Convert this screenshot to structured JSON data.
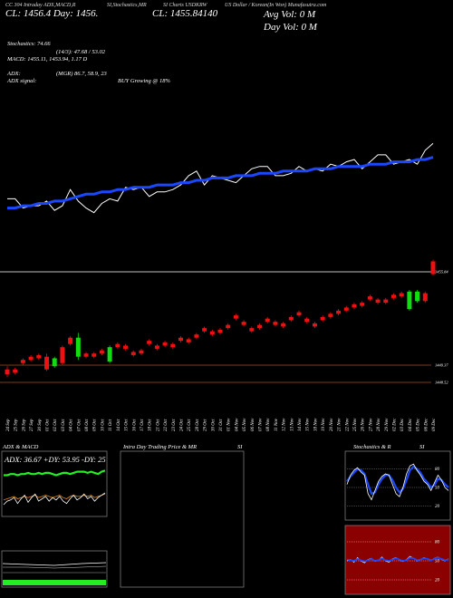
{
  "header": {
    "top_labels": [
      "CC 304 Intraday ADX,MACD,R",
      "SI,Stochastics,MR",
      "SI Charts USDKRW",
      "US Dollar / Korean(In Won) Munafasutra.com"
    ],
    "line2_left": "CL: 1456.4   Day: 1456.",
    "close_label": "CL: 1455.84140",
    "avg_vol": "Avg Vol: 0  M",
    "day_vol": "Day Vol: 0   M"
  },
  "info": {
    "stochastics": "Stochastics: 74.66",
    "stoch_values": "(14/3): 47.68 / 53.02",
    "macd": "MACD: 1455.11,  1453.94,  1.17 D",
    "adx": "ADX:",
    "adx_values": "(MGR) 86.7,  58.9,  23",
    "adx_signal": "ADX  signal:",
    "signal_value": "BUY Growing @ 18%"
  },
  "panels": {
    "adx_title": "ADX  & MACD",
    "adx_values": "ADX: 36.67 +DY: 53.95 -DY: 25",
    "intra_title": "Intra  Day Trading Price  & MR",
    "intra_si": "SI",
    "stoch_title": "Stochastics & R",
    "stoch_si": "SI",
    "stoch_levels": [
      "80",
      "50",
      "20"
    ],
    "rsi_levels": [
      "80",
      "50",
      "20"
    ]
  },
  "price_labels": [
    "1455.84",
    "1449.37",
    "1448.52"
  ],
  "chart_data": {
    "type": "candlestick",
    "title": "",
    "dates": [
      "24 Sep",
      "25 Sep",
      "26 Sep",
      "27 Sep",
      "30 Sep",
      "01 Oct",
      "02 Oct",
      "03 Oct",
      "04 Oct",
      "07 Oct",
      "08 Oct",
      "09 Oct",
      "10 Oct",
      "11 Oct",
      "14 Oct",
      "15 Oct",
      "16 Oct",
      "17 Oct",
      "18 Oct",
      "21 Oct",
      "22 Oct",
      "23 Oct",
      "24 Oct",
      "25 Oct",
      "28 Oct",
      "29 Oct",
      "30 Oct",
      "31 Oct",
      "01 Nov",
      "04 Nov",
      "05 Nov",
      "06 Nov",
      "07 Nov",
      "08 Nov",
      "11 Nov",
      "12 Nov",
      "13 Nov",
      "14 Nov",
      "15 Nov",
      "18 Nov",
      "19 Nov",
      "20 Nov",
      "21 Nov",
      "22 Nov",
      "25 Nov",
      "26 Nov",
      "27 Nov",
      "28 Nov",
      "29 Nov",
      "02 Dec",
      "03 Dec",
      "04 Dec",
      "05 Dec",
      "06 Dec",
      "09 Dec"
    ],
    "candles": [
      {
        "o": 1449.0,
        "c": 1448.7,
        "h": 1449.2,
        "l": 1448.5
      },
      {
        "o": 1449.0,
        "c": 1448.8,
        "h": 1449.1,
        "l": 1448.7
      },
      {
        "o": 1449.6,
        "c": 1449.4,
        "h": 1449.7,
        "l": 1449.3
      },
      {
        "o": 1449.8,
        "c": 1449.6,
        "h": 1449.9,
        "l": 1449.5
      },
      {
        "o": 1449.9,
        "c": 1449.7,
        "h": 1450.0,
        "l": 1449.6
      },
      {
        "o": 1449.8,
        "c": 1449.0,
        "h": 1450.0,
        "l": 1448.9
      },
      {
        "o": 1449.2,
        "c": 1449.7,
        "h": 1449.8,
        "l": 1449.1
      },
      {
        "o": 1450.4,
        "c": 1449.4,
        "h": 1450.5,
        "l": 1449.3
      },
      {
        "o": 1451.0,
        "c": 1450.6,
        "h": 1451.1,
        "l": 1450.5
      },
      {
        "o": 1449.8,
        "c": 1451.0,
        "h": 1451.3,
        "l": 1449.6
      },
      {
        "o": 1450.0,
        "c": 1449.8,
        "h": 1450.1,
        "l": 1449.7
      },
      {
        "o": 1450.0,
        "c": 1449.8,
        "h": 1450.1,
        "l": 1449.7
      },
      {
        "o": 1450.2,
        "c": 1450.0,
        "h": 1450.3,
        "l": 1449.9
      },
      {
        "o": 1449.5,
        "c": 1450.4,
        "h": 1450.5,
        "l": 1449.4
      },
      {
        "o": 1450.6,
        "c": 1450.4,
        "h": 1450.7,
        "l": 1450.3
      },
      {
        "o": 1450.5,
        "c": 1450.3,
        "h": 1450.6,
        "l": 1450.2
      },
      {
        "o": 1450.1,
        "c": 1449.9,
        "h": 1450.2,
        "l": 1449.8
      },
      {
        "o": 1450.2,
        "c": 1450.0,
        "h": 1450.3,
        "l": 1449.9
      },
      {
        "o": 1450.8,
        "c": 1450.6,
        "h": 1450.9,
        "l": 1450.5
      },
      {
        "o": 1450.5,
        "c": 1450.3,
        "h": 1450.6,
        "l": 1450.2
      },
      {
        "o": 1450.7,
        "c": 1450.5,
        "h": 1450.8,
        "l": 1450.4
      },
      {
        "o": 1450.6,
        "c": 1450.4,
        "h": 1450.7,
        "l": 1450.3
      },
      {
        "o": 1451.0,
        "c": 1450.8,
        "h": 1451.1,
        "l": 1450.7
      },
      {
        "o": 1450.9,
        "c": 1450.7,
        "h": 1451.0,
        "l": 1450.6
      },
      {
        "o": 1451.2,
        "c": 1451.0,
        "h": 1451.3,
        "l": 1450.9
      },
      {
        "o": 1451.6,
        "c": 1451.4,
        "h": 1451.7,
        "l": 1451.3
      },
      {
        "o": 1451.4,
        "c": 1451.2,
        "h": 1451.5,
        "l": 1451.1
      },
      {
        "o": 1451.5,
        "c": 1451.3,
        "h": 1451.6,
        "l": 1451.2
      },
      {
        "o": 1451.8,
        "c": 1451.6,
        "h": 1451.9,
        "l": 1451.5
      },
      {
        "o": 1452.4,
        "c": 1452.2,
        "h": 1452.5,
        "l": 1452.1
      },
      {
        "o": 1452.0,
        "c": 1451.8,
        "h": 1452.1,
        "l": 1451.7
      },
      {
        "o": 1451.6,
        "c": 1451.4,
        "h": 1451.7,
        "l": 1451.3
      },
      {
        "o": 1451.8,
        "c": 1451.6,
        "h": 1451.9,
        "l": 1451.5
      },
      {
        "o": 1452.2,
        "c": 1452.0,
        "h": 1452.3,
        "l": 1451.9
      },
      {
        "o": 1452.0,
        "c": 1451.8,
        "h": 1452.1,
        "l": 1451.7
      },
      {
        "o": 1451.9,
        "c": 1451.7,
        "h": 1452.0,
        "l": 1451.6
      },
      {
        "o": 1452.3,
        "c": 1452.1,
        "h": 1452.4,
        "l": 1452.0
      },
      {
        "o": 1452.6,
        "c": 1452.4,
        "h": 1452.7,
        "l": 1452.3
      },
      {
        "o": 1452.2,
        "c": 1452.0,
        "h": 1452.3,
        "l": 1451.9
      },
      {
        "o": 1451.9,
        "c": 1451.7,
        "h": 1452.0,
        "l": 1451.6
      },
      {
        "o": 1452.3,
        "c": 1452.1,
        "h": 1452.4,
        "l": 1452.0
      },
      {
        "o": 1452.5,
        "c": 1452.3,
        "h": 1452.6,
        "l": 1452.2
      },
      {
        "o": 1452.7,
        "c": 1452.5,
        "h": 1452.8,
        "l": 1452.4
      },
      {
        "o": 1452.9,
        "c": 1452.7,
        "h": 1453.0,
        "l": 1452.6
      },
      {
        "o": 1453.1,
        "c": 1452.9,
        "h": 1453.2,
        "l": 1452.8
      },
      {
        "o": 1453.2,
        "c": 1453.0,
        "h": 1453.3,
        "l": 1452.9
      },
      {
        "o": 1453.6,
        "c": 1453.4,
        "h": 1453.7,
        "l": 1453.3
      },
      {
        "o": 1453.4,
        "c": 1453.2,
        "h": 1453.5,
        "l": 1453.1
      },
      {
        "o": 1453.4,
        "c": 1453.2,
        "h": 1453.5,
        "l": 1453.1
      },
      {
        "o": 1453.7,
        "c": 1453.5,
        "h": 1453.8,
        "l": 1453.4
      },
      {
        "o": 1453.8,
        "c": 1453.6,
        "h": 1453.9,
        "l": 1453.5
      },
      {
        "o": 1452.8,
        "c": 1453.9,
        "h": 1454.0,
        "l": 1452.7
      },
      {
        "o": 1453.3,
        "c": 1453.9,
        "h": 1454.0,
        "l": 1453.2
      },
      {
        "o": 1453.8,
        "c": 1453.3,
        "h": 1453.9,
        "l": 1453.2
      },
      {
        "o": 1455.8,
        "c": 1455.0,
        "h": 1455.9,
        "l": 1454.9
      }
    ],
    "price_line": [
      37,
      37,
      33,
      34,
      34,
      36,
      32,
      34,
      41,
      36,
      33,
      31,
      35,
      37,
      36,
      42,
      41,
      42,
      38,
      40,
      40,
      41,
      43,
      47,
      49,
      43,
      47,
      46,
      45,
      44,
      47,
      50,
      51,
      51,
      47,
      47,
      48,
      51,
      49,
      50,
      49,
      52,
      51,
      53,
      54,
      50,
      53,
      56,
      56,
      52,
      53,
      54,
      52,
      58,
      61
    ],
    "ma_line": [
      33,
      33,
      34,
      34,
      35,
      35,
      36,
      36,
      37,
      38,
      39,
      39,
      40,
      40,
      41,
      41,
      42,
      42,
      42,
      43,
      43,
      43,
      44,
      44,
      45,
      45,
      46,
      46,
      46,
      47,
      47,
      47,
      48,
      48,
      48,
      49,
      49,
      49,
      49,
      50,
      50,
      50,
      51,
      51,
      51,
      51,
      52,
      52,
      52,
      53,
      53,
      53,
      54,
      54,
      55
    ],
    "adx_panel": {
      "green_line": [
        55,
        55,
        56,
        56,
        55,
        56,
        56,
        57,
        56,
        56,
        57,
        56,
        57,
        57,
        56,
        55,
        56,
        57,
        57,
        56,
        57,
        58,
        58,
        58,
        57,
        58,
        57,
        56,
        58,
        59
      ],
      "white_line": [
        30,
        33,
        34,
        36,
        31,
        35,
        38,
        32,
        36,
        39,
        33,
        35,
        37,
        33,
        36,
        34,
        37,
        33,
        31,
        35,
        38,
        34,
        36,
        39,
        35,
        37,
        33,
        36,
        38,
        40
      ],
      "orange_line": [
        34,
        35,
        36,
        37,
        35,
        36,
        37,
        36,
        37,
        38,
        36,
        37,
        38,
        37,
        36,
        37,
        38,
        36,
        35,
        37,
        38,
        37,
        37,
        38,
        37,
        38,
        36,
        37,
        38,
        39
      ]
    },
    "stoch_panel": {
      "white_line": [
        55,
        70,
        78,
        82,
        75,
        70,
        40,
        30,
        45,
        60,
        68,
        72,
        70,
        55,
        40,
        35,
        50,
        72,
        85,
        88,
        78,
        70,
        60,
        55,
        45,
        58,
        70,
        62,
        50,
        45
      ],
      "blue_line": [
        60,
        68,
        74,
        80,
        78,
        72,
        55,
        40,
        42,
        55,
        64,
        70,
        70,
        62,
        50,
        42,
        48,
        62,
        78,
        84,
        80,
        74,
        64,
        58,
        50,
        54,
        64,
        62,
        55,
        50
      ]
    },
    "rsi_panel": {
      "white_line": [
        50,
        52,
        48,
        55,
        50,
        47,
        52,
        54,
        49,
        51,
        56,
        50,
        48,
        53,
        55,
        51,
        49,
        52,
        57,
        54,
        50,
        52,
        55,
        53,
        51,
        54,
        56,
        52,
        50,
        53
      ],
      "blue_line": [
        52,
        51,
        50,
        53,
        51,
        49,
        51,
        53,
        50,
        51,
        54,
        51,
        50,
        52,
        54,
        52,
        50,
        51,
        55,
        54,
        51,
        52,
        54,
        53,
        51,
        53,
        55,
        53,
        51,
        52
      ]
    }
  }
}
